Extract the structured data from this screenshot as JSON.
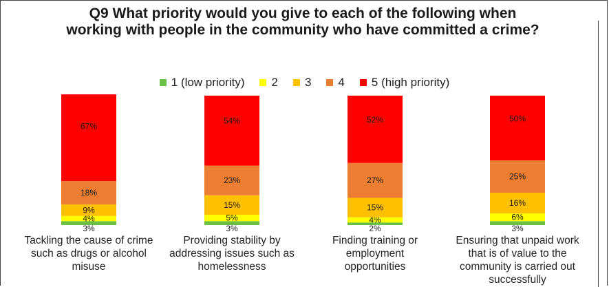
{
  "chart_data": {
    "type": "bar",
    "stacked": true,
    "orientation": "vertical",
    "title": "Q9 What priority would you give to each of the following when working with people in the community who have committed a crime?",
    "legend_position": "top",
    "grid": false,
    "ylim": [
      0,
      100
    ],
    "categories": [
      "Tackling the cause of crime such as drugs or alcohol misuse",
      "Providing stability by addressing issues such as homelessness",
      "Finding training or employment opportunities",
      "Ensuring that unpaid work that is of value to the community is carried out successfully"
    ],
    "series": [
      {
        "name": "1 (low priority)",
        "color": "#6abf45",
        "values": [
          3,
          3,
          2,
          3
        ],
        "labels": [
          "3%",
          "3%",
          "2%",
          "3%"
        ]
      },
      {
        "name": "2",
        "color": "#ffff00",
        "values": [
          4,
          5,
          4,
          6
        ],
        "labels": [
          "4%",
          "5%",
          "4%",
          "6%"
        ]
      },
      {
        "name": "3",
        "color": "#ffc000",
        "values": [
          9,
          15,
          15,
          16
        ],
        "labels": [
          "9%",
          "15%",
          "15%",
          "16%"
        ]
      },
      {
        "name": "4",
        "color": "#ed7d31",
        "values": [
          18,
          23,
          27,
          25
        ],
        "labels": [
          "18%",
          "23%",
          "27%",
          "25%"
        ]
      },
      {
        "name": "5 (high priority)",
        "color": "#ff0000",
        "values": [
          67,
          54,
          52,
          50
        ],
        "labels": [
          "67%",
          "54%",
          "52%",
          "50%"
        ]
      }
    ]
  }
}
